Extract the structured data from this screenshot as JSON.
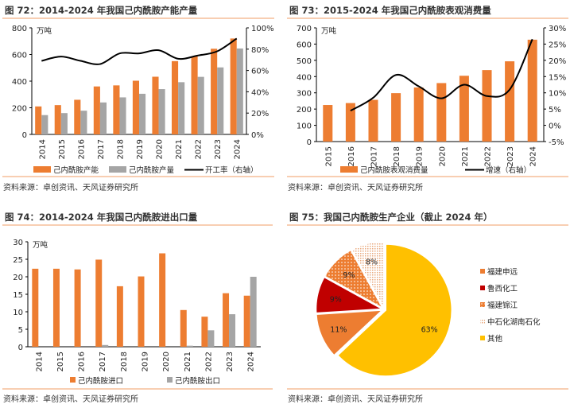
{
  "chart_data": [
    {
      "type": "bar+line",
      "title": "图 72：2014-2024 年我国己内酰胺产能产量",
      "y_unit": "万吨",
      "categories": [
        "2014",
        "2015",
        "2016",
        "2017",
        "2018",
        "2019",
        "2020",
        "2021",
        "2022",
        "2023",
        "2024"
      ],
      "ylim": [
        0,
        800
      ],
      "yticks": [
        0,
        200,
        400,
        600,
        800
      ],
      "y2lim": [
        0,
        100
      ],
      "y2ticks": [
        "0%",
        "20%",
        "40%",
        "60%",
        "80%",
        "100%"
      ],
      "series": [
        {
          "name": "己内酰胺产能",
          "type": "bar",
          "color": "#ED7D31",
          "values": [
            210,
            220,
            260,
            360,
            368,
            403,
            433,
            550,
            585,
            643,
            720
          ]
        },
        {
          "name": "己内酰胺产量",
          "type": "bar",
          "color": "#A5A5A5",
          "values": [
            145,
            160,
            178,
            240,
            278,
            305,
            340,
            392,
            432,
            503,
            645
          ]
        },
        {
          "name": "开工率（右轴）",
          "type": "line",
          "axis": "right",
          "color": "#000000",
          "values": [
            69,
            73,
            69,
            66,
            76,
            76,
            79,
            71,
            74,
            78,
            90
          ]
        }
      ],
      "source": "资料来源：卓创资讯、天风证券研究所"
    },
    {
      "type": "bar+line",
      "title": "图 73：2015-2024 年我国己内酰胺表观消费量",
      "y_unit": "万吨",
      "categories": [
        "2015",
        "2016",
        "2017",
        "2018",
        "2019",
        "2020",
        "2021",
        "2022",
        "2023",
        "2024"
      ],
      "ylim": [
        0,
        700
      ],
      "yticks": [
        0,
        100,
        200,
        300,
        400,
        500,
        600,
        700
      ],
      "y2lim": [
        -5,
        30
      ],
      "y2ticks": [
        "-5%",
        "0%",
        "5%",
        "10%",
        "15%",
        "20%",
        "25%",
        "30%"
      ],
      "series": [
        {
          "name": "己内酰胺表观消费量",
          "type": "bar",
          "color": "#ED7D31",
          "values": [
            225,
            237,
            257,
            298,
            333,
            360,
            405,
            440,
            494,
            627
          ]
        },
        {
          "name": "增速（右轴）",
          "type": "line",
          "axis": "right",
          "color": "#000000",
          "values": [
            null,
            4.5,
            8.5,
            15.5,
            12,
            8.3,
            12.5,
            9,
            11,
            26.5
          ]
        }
      ],
      "source": "资料来源：卓创资讯、天风证券研究所"
    },
    {
      "type": "bar",
      "title": "图 74：2014-2024 年我国己内酰胺进出口量",
      "y_unit": "万吨",
      "categories": [
        "2014",
        "2015",
        "2016",
        "2017",
        "2018",
        "2019",
        "2020",
        "2021",
        "2022",
        "2023",
        "2024"
      ],
      "ylim": [
        0,
        30
      ],
      "yticks": [
        0,
        5,
        10,
        15,
        20,
        25,
        30
      ],
      "series": [
        {
          "name": "己内酰胺进口",
          "color": "#ED7D31",
          "values": [
            22.3,
            22.3,
            22.1,
            24.9,
            17.3,
            20.1,
            26.7,
            10.5,
            8.6,
            15.3,
            14.6
          ]
        },
        {
          "name": "己内酰胺出口",
          "color": "#A5A5A5",
          "values": [
            0,
            0,
            0,
            0.5,
            0,
            0,
            0,
            0.3,
            4.7,
            9.3,
            20.0
          ]
        }
      ],
      "source": "资料来源：卓创资讯、天风证券研究所"
    },
    {
      "type": "pie",
      "title": "图 75：我国己内酰胺生产企业（截止 2024 年）",
      "slices": [
        {
          "name": "其他",
          "value": 63,
          "label": "63%",
          "color": "#FFC000",
          "pattern": "solid"
        },
        {
          "name": "福建申远",
          "value": 11,
          "label": "11%",
          "color": "#ED7D31",
          "pattern": "solid"
        },
        {
          "name": "鲁西化工",
          "value": 9,
          "label": "9%",
          "color": "#C00000",
          "pattern": "solid"
        },
        {
          "name": "福建锦江",
          "value": 9,
          "label": "9%",
          "color": "#ED7D31",
          "pattern": "dots"
        },
        {
          "name": "中石化湖南石化",
          "value": 8,
          "label": "8%",
          "color": "#F4B183",
          "pattern": "hatch"
        }
      ],
      "legend_order": [
        "福建申远",
        "鲁西化工",
        "福建锦江",
        "中石化湖南石化",
        "其他"
      ],
      "legend": "right",
      "source": "资料来源：卓创资讯、天风证券研究所"
    }
  ]
}
